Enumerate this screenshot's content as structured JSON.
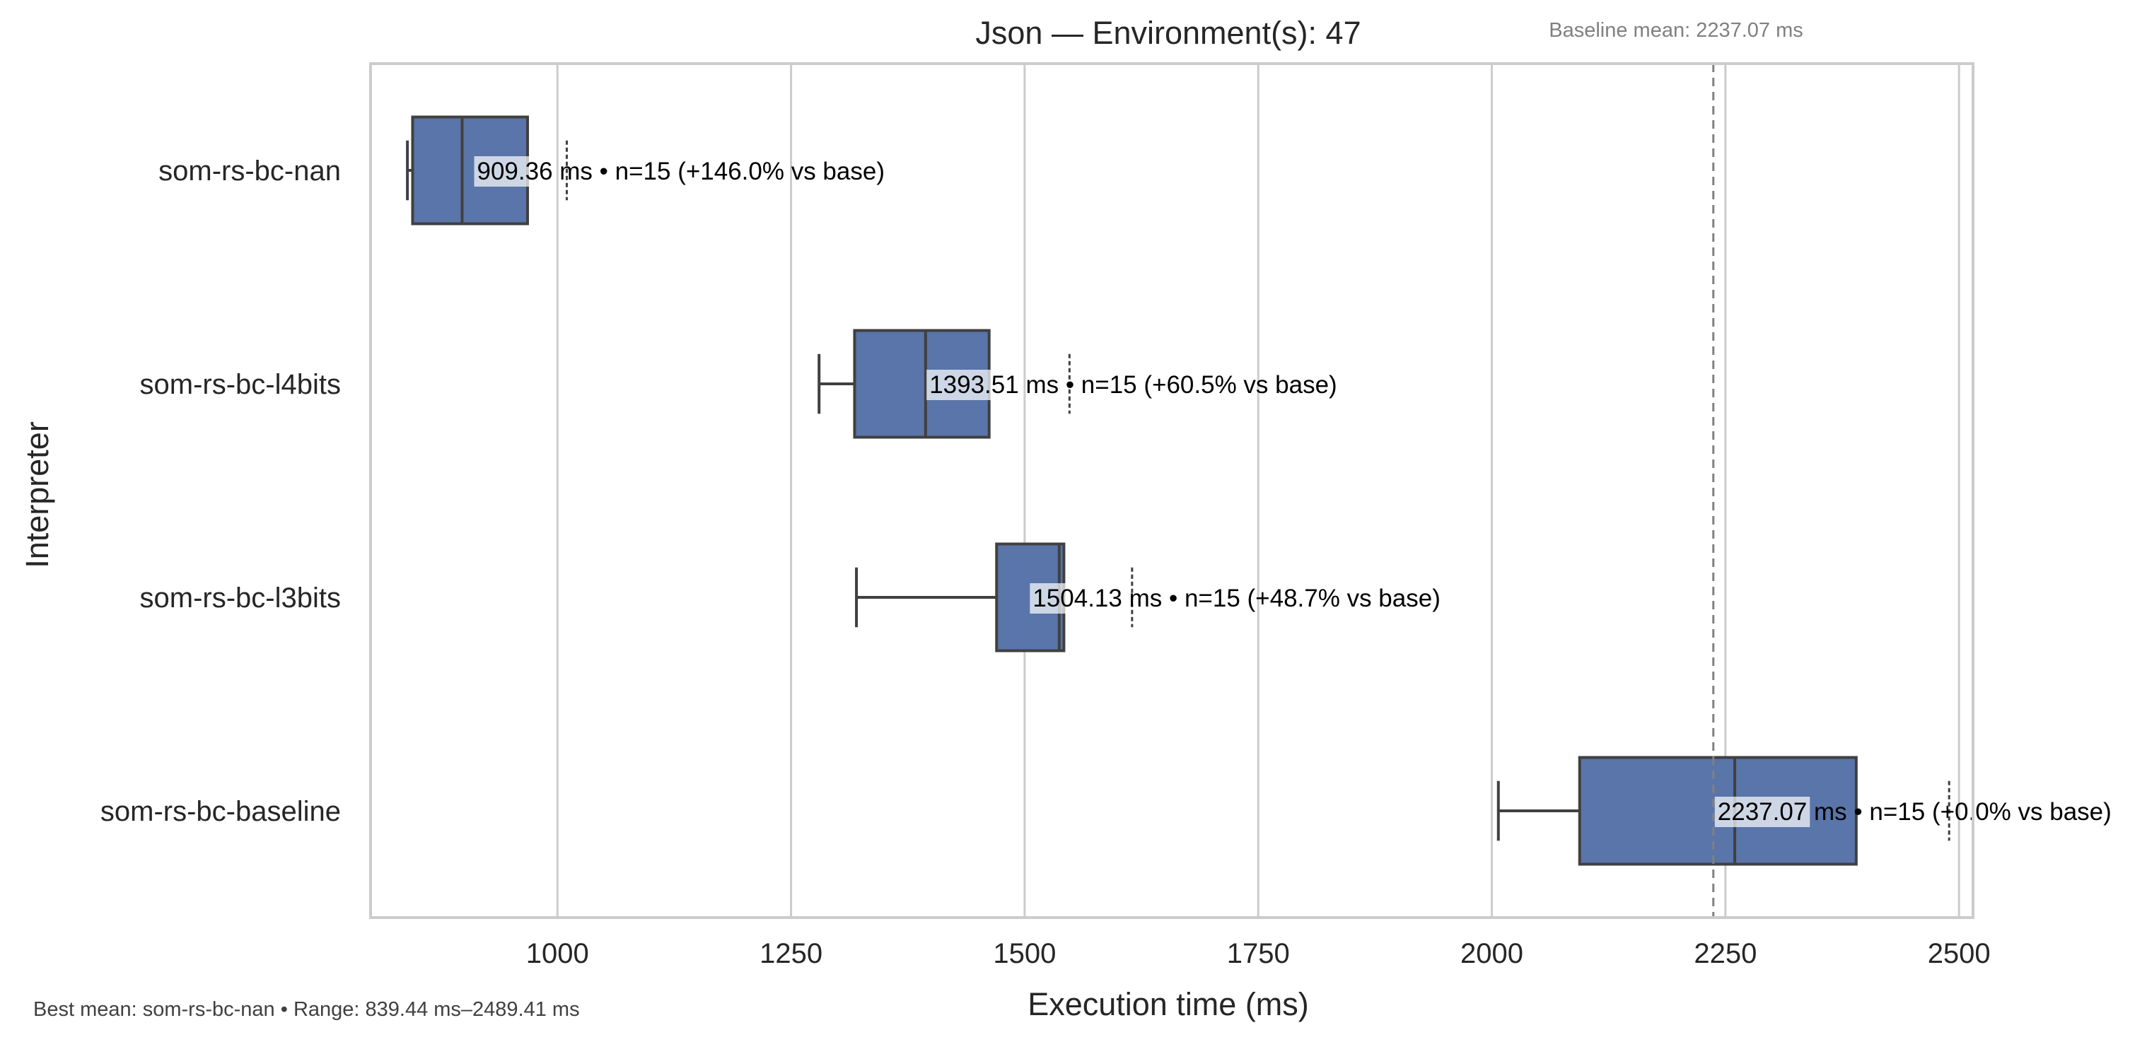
{
  "chart_data": {
    "type": "box",
    "title": "Json — Environment(s): 47",
    "xlabel": "Execution time (ms)",
    "ylabel": "Interpreter",
    "xlim": [
      800,
      2515
    ],
    "xticks": [
      1000,
      1250,
      1500,
      1750,
      2000,
      2250,
      2500
    ],
    "grid": "vertical",
    "box_color": "#5975a9",
    "edge_color": "#404040",
    "baseline_mean": 2237.07,
    "baseline_label": "Baseline mean: 2237.07 ms",
    "footer": "Best mean: som-rs-bc-nan • Range: 839.44 ms–2489.41 ms",
    "categories": [
      "som-rs-bc-nan",
      "som-rs-bc-l4bits",
      "som-rs-bc-l3bits",
      "som-rs-bc-baseline"
    ],
    "boxes": [
      {
        "name": "som-rs-bc-nan",
        "whisker_low": 839.44,
        "q1": 845,
        "median": 898,
        "q3": 968,
        "whisker_high": 968,
        "outliers": [
          1010
        ],
        "mean": 909.36,
        "annotation": {
          "mean": "909.36",
          "rest": " ms • n=15 (+146.0% vs base)"
        }
      },
      {
        "name": "som-rs-bc-l4bits",
        "whisker_low": 1280,
        "q1": 1318,
        "median": 1394,
        "q3": 1462,
        "whisker_high": 1462,
        "outliers": [
          1548
        ],
        "mean": 1393.51,
        "annotation": {
          "mean": "1393.51",
          "rest": " ms • n=15 (+60.5% vs base)"
        }
      },
      {
        "name": "som-rs-bc-l3bits",
        "whisker_low": 1320,
        "q1": 1470,
        "median": 1537,
        "q3": 1542,
        "whisker_high": 1542,
        "outliers": [
          1615
        ],
        "mean": 1504.13,
        "annotation": {
          "mean": "1504.13",
          "rest": " ms • n=15 (+48.7% vs base)"
        }
      },
      {
        "name": "som-rs-bc-baseline",
        "whisker_low": 2007,
        "q1": 2094,
        "median": 2260,
        "q3": 2390,
        "whisker_high": 2390,
        "outliers": [
          2489.41
        ],
        "mean": 2237.07,
        "annotation": {
          "mean": "2237.07",
          "rest": " ms • n=15 (+0.0% vs base)"
        }
      }
    ]
  }
}
